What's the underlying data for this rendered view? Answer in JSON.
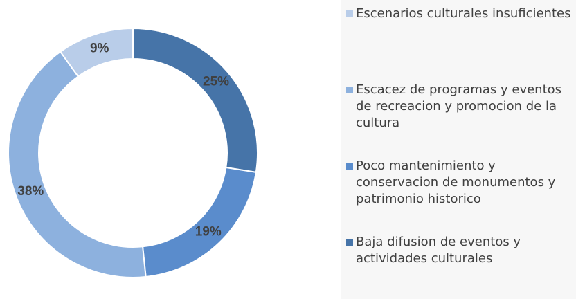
{
  "chart_data": {
    "type": "donut",
    "categories": [
      "Escenarios culturales insuficientes",
      "Escacez de programas y eventos de recreacion y promocion de la cultura",
      "Poco mantenimiento y conservacion de monumentos y patrimonio historico",
      "Baja difusion de eventos y actividades culturales"
    ],
    "values": [
      9,
      38,
      19,
      25
    ],
    "value_labels": [
      "9%",
      "38%",
      "19%",
      "25%"
    ],
    "colors": [
      "#b9cde9",
      "#8db1de",
      "#5a8ccc",
      "#4674a8"
    ],
    "legend": "right"
  }
}
